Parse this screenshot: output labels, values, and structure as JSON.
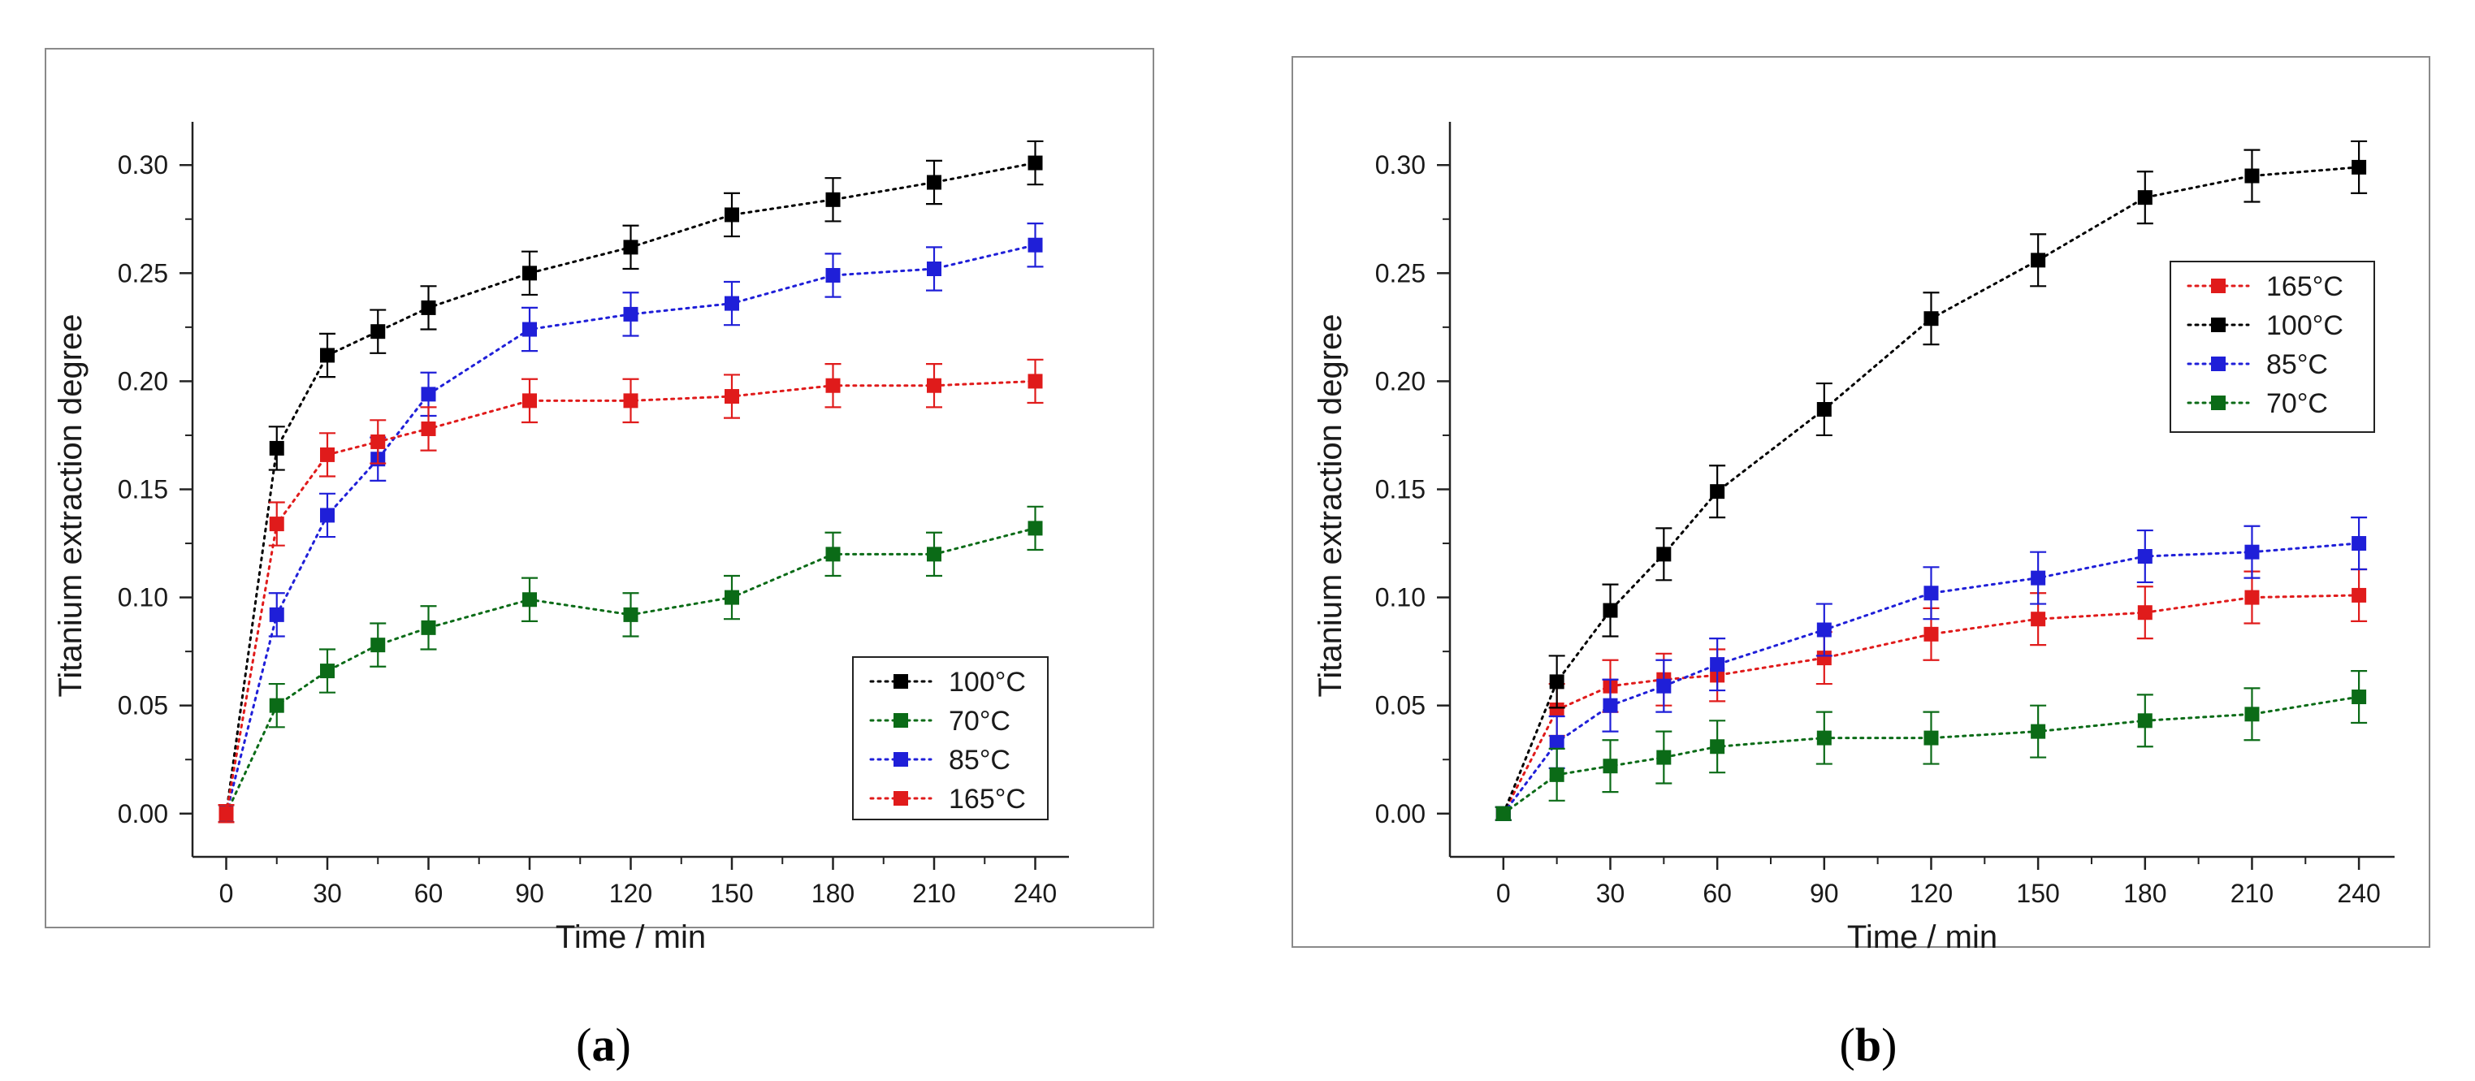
{
  "chart_data": [
    {
      "type": "scatter",
      "panel": "a",
      "panel_label": {
        "open": "(",
        "letter": "a",
        "close": ")"
      },
      "xlabel": "Time / min",
      "ylabel": "Titanium extraction degree",
      "xlim": [
        -10,
        250
      ],
      "ylim": [
        -0.02,
        0.32
      ],
      "xticks": [
        0,
        30,
        60,
        90,
        120,
        150,
        180,
        210,
        240
      ],
      "yticks": [
        "0.00",
        "0.05",
        "0.10",
        "0.15",
        "0.20",
        "0.25",
        "0.30"
      ],
      "line_style": "dotted",
      "marker": "square",
      "error_bars": true,
      "legend_position": "bottom-right",
      "series": [
        {
          "name": "100°C",
          "color": "#000000",
          "x": [
            0,
            15,
            30,
            45,
            60,
            90,
            120,
            150,
            180,
            210,
            240
          ],
          "y": [
            0.0,
            0.169,
            0.212,
            0.223,
            0.234,
            0.25,
            0.262,
            0.277,
            0.284,
            0.292,
            0.301
          ],
          "err": [
            0.004,
            0.01,
            0.01,
            0.01,
            0.01,
            0.01,
            0.01,
            0.01,
            0.01,
            0.01,
            0.01
          ]
        },
        {
          "name": "70°C",
          "color": "#0b6b17",
          "x": [
            0,
            15,
            30,
            45,
            60,
            90,
            120,
            150,
            180,
            210,
            240
          ],
          "y": [
            0.0,
            0.05,
            0.066,
            0.078,
            0.086,
            0.099,
            0.092,
            0.1,
            0.12,
            0.12,
            0.132
          ],
          "err": [
            0.004,
            0.01,
            0.01,
            0.01,
            0.01,
            0.01,
            0.01,
            0.01,
            0.01,
            0.01,
            0.01
          ]
        },
        {
          "name": "85°C",
          "color": "#1f1fd8",
          "x": [
            0,
            15,
            30,
            45,
            60,
            90,
            120,
            150,
            180,
            210,
            240
          ],
          "y": [
            0.0,
            0.092,
            0.138,
            0.164,
            0.194,
            0.224,
            0.231,
            0.236,
            0.249,
            0.252,
            0.263
          ],
          "err": [
            0.004,
            0.01,
            0.01,
            0.01,
            0.01,
            0.01,
            0.01,
            0.01,
            0.01,
            0.01,
            0.01
          ]
        },
        {
          "name": "165°C",
          "color": "#e01b1b",
          "x": [
            0,
            15,
            30,
            45,
            60,
            90,
            120,
            150,
            180,
            210,
            240
          ],
          "y": [
            0.0,
            0.134,
            0.166,
            0.172,
            0.178,
            0.191,
            0.191,
            0.193,
            0.198,
            0.198,
            0.2
          ],
          "err": [
            0.004,
            0.01,
            0.01,
            0.01,
            0.01,
            0.01,
            0.01,
            0.01,
            0.01,
            0.01,
            0.01
          ]
        }
      ]
    },
    {
      "type": "scatter",
      "panel": "b",
      "panel_label": {
        "open": "(",
        "letter": "b",
        "close": ")"
      },
      "xlabel": "Time / min",
      "ylabel": "Titanium extraction degree",
      "xlim": [
        -15,
        250
      ],
      "ylim": [
        -0.02,
        0.32
      ],
      "xticks": [
        0,
        30,
        60,
        90,
        120,
        150,
        180,
        210,
        240
      ],
      "yticks": [
        "0.00",
        "0.05",
        "0.10",
        "0.15",
        "0.20",
        "0.25",
        "0.30"
      ],
      "line_style": "dotted",
      "marker": "square",
      "error_bars": true,
      "legend_position": "top-right",
      "series": [
        {
          "name": "165°C",
          "color": "#e01b1b",
          "x": [
            0,
            15,
            30,
            45,
            60,
            90,
            120,
            150,
            180,
            210,
            240
          ],
          "y": [
            0.0,
            0.048,
            0.059,
            0.062,
            0.064,
            0.072,
            0.083,
            0.09,
            0.093,
            0.1,
            0.101
          ],
          "err": [
            0.003,
            0.012,
            0.012,
            0.012,
            0.012,
            0.012,
            0.012,
            0.012,
            0.012,
            0.012,
            0.012
          ]
        },
        {
          "name": "100°C",
          "color": "#000000",
          "x": [
            0,
            15,
            30,
            45,
            60,
            90,
            120,
            150,
            180,
            210,
            240
          ],
          "y": [
            0.0,
            0.061,
            0.094,
            0.12,
            0.149,
            0.187,
            0.229,
            0.256,
            0.285,
            0.295,
            0.299
          ],
          "err": [
            0.003,
            0.012,
            0.012,
            0.012,
            0.012,
            0.012,
            0.012,
            0.012,
            0.012,
            0.012,
            0.012
          ]
        },
        {
          "name": "85°C",
          "color": "#1f1fd8",
          "x": [
            0,
            15,
            30,
            45,
            60,
            90,
            120,
            150,
            180,
            210,
            240
          ],
          "y": [
            0.0,
            0.033,
            0.05,
            0.059,
            0.069,
            0.085,
            0.102,
            0.109,
            0.119,
            0.121,
            0.125
          ],
          "err": [
            0.003,
            0.012,
            0.012,
            0.012,
            0.012,
            0.012,
            0.012,
            0.012,
            0.012,
            0.012,
            0.012
          ]
        },
        {
          "name": "70°C",
          "color": "#0b6b17",
          "x": [
            0,
            15,
            30,
            45,
            60,
            90,
            120,
            150,
            180,
            210,
            240
          ],
          "y": [
            0.0,
            0.018,
            0.022,
            0.026,
            0.031,
            0.035,
            0.035,
            0.038,
            0.043,
            0.046,
            0.054
          ],
          "err": [
            0.003,
            0.012,
            0.012,
            0.012,
            0.012,
            0.012,
            0.012,
            0.012,
            0.012,
            0.012,
            0.012
          ]
        }
      ]
    }
  ]
}
